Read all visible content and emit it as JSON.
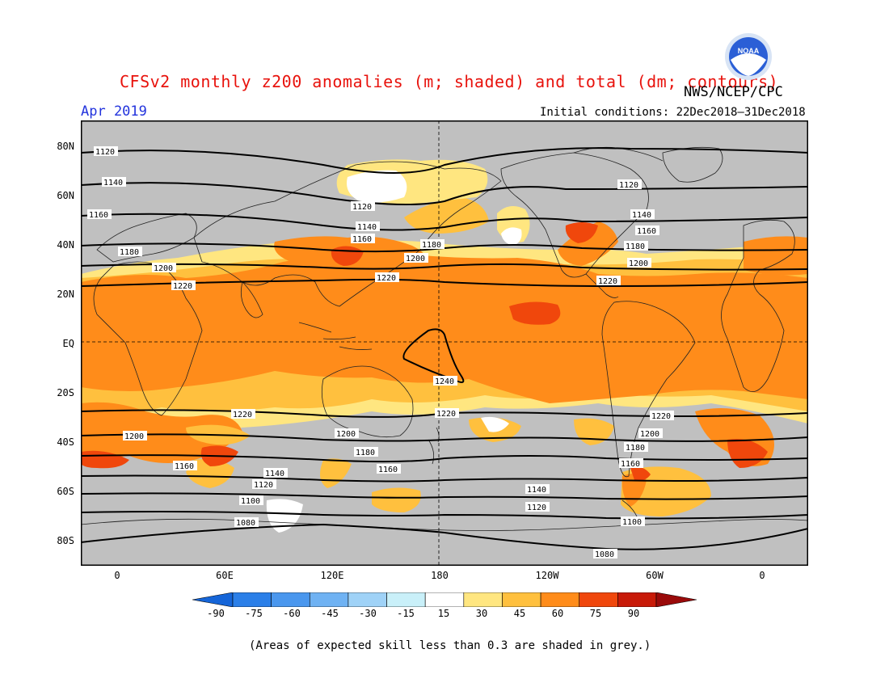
{
  "header": {
    "title": "CFSv2 monthly z200 anomalies (m; shaded) and total (dm; contours)",
    "agency": "NWS/NCEP/CPC",
    "month": "Apr 2019",
    "initial_conditions": "Initial conditions: 22Dec2018–31Dec2018"
  },
  "logo": {
    "text": "NOAA",
    "colors": {
      "sky": "#2b5fd6",
      "bird": "#ffffff",
      "ring": "#d8e4f5"
    }
  },
  "axes": {
    "lat_labels": [
      "80N",
      "60N",
      "40N",
      "20N",
      "EQ",
      "20S",
      "40S",
      "60S",
      "80S"
    ],
    "lon_labels": [
      "0",
      "60E",
      "120E",
      "180",
      "120W",
      "60W",
      "0"
    ]
  },
  "contour_labels": [
    "1080",
    "1100",
    "1120",
    "1140",
    "1160",
    "1180",
    "1200",
    "1220",
    "1240"
  ],
  "colorbar": {
    "ticks": [
      "-90",
      "-75",
      "-60",
      "-45",
      "-30",
      "-15",
      "15",
      "30",
      "45",
      "60",
      "75",
      "90"
    ],
    "colors": [
      "#1565d8",
      "#2b7fe8",
      "#4a97ee",
      "#6fb2f3",
      "#9fd2f7",
      "#c9f0f9",
      "#ffffff",
      "#ffe680",
      "#ffc03e",
      "#ff8c1a",
      "#f0470c",
      "#c81a08",
      "#9a0a0a"
    ]
  },
  "map": {
    "skill_mask_color": "#c0c0c0"
  },
  "footnote": "(Areas of expected skill less than 0.3 are shaded in grey.)"
}
